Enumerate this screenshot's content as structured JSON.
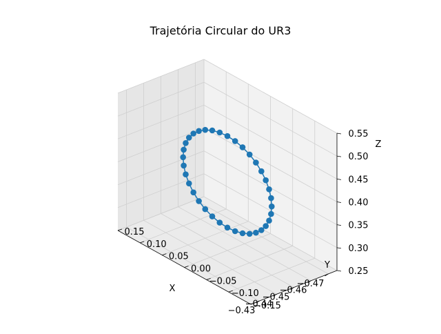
{
  "chart_data": {
    "type": "scatter",
    "projection": "3d",
    "title": "Trajetória Circular do UR3",
    "xlabel": "X",
    "ylabel": "Y",
    "zlabel": "Z",
    "xlim": [
      -0.475,
      -0.425
    ],
    "ylim": [
      -0.15,
      0.15
    ],
    "zlim": [
      0.25,
      0.55
    ],
    "xticks": [
      "−0.47",
      "−0.46",
      "−0.45",
      "−0.44",
      "−0.43"
    ],
    "yticks": [
      "−0.15",
      "−0.10",
      "−0.05",
      "0.00",
      "0.05",
      "0.10",
      "0.15"
    ],
    "zticks": [
      "0.25",
      "0.30",
      "0.35",
      "0.40",
      "0.45",
      "0.50",
      "0.55"
    ],
    "xtick_values": [
      -0.47,
      -0.46,
      -0.45,
      -0.44,
      -0.43
    ],
    "ytick_values": [
      -0.15,
      -0.1,
      -0.05,
      0.0,
      0.05,
      0.1,
      0.15
    ],
    "ztick_values": [
      0.25,
      0.3,
      0.35,
      0.4,
      0.45,
      0.5,
      0.55
    ],
    "grid": true,
    "marker_color": "#1f77b4",
    "trajectory": {
      "shape": "circle",
      "center": [
        -0.45,
        0.0,
        0.4
      ],
      "radius": 0.1,
      "plane": "y-z",
      "points": 36
    }
  }
}
